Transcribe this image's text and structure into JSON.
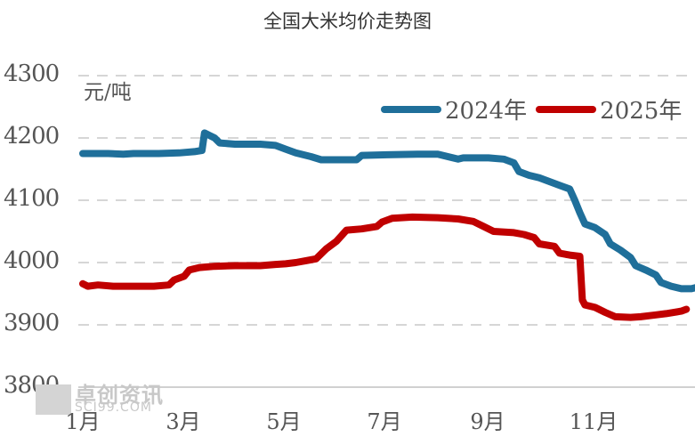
{
  "chart_data": {
    "type": "line",
    "title": "全国大米均价走势图",
    "ylabel": "元/吨",
    "xlabel": "",
    "ylim": [
      3800,
      4300
    ],
    "yticks": [
      4300,
      4200,
      4100,
      4000,
      3900,
      3800
    ],
    "xticks": [
      "1月",
      "3月",
      "5月",
      "7月",
      "9月",
      "11月"
    ],
    "xlim_months": [
      1,
      13
    ],
    "grid": "horizontal dashed",
    "legend_position": "top-right",
    "series": [
      {
        "name": "2024年",
        "color": "#1f6f9a",
        "points": [
          [
            1.0,
            4175
          ],
          [
            1.5,
            4175
          ],
          [
            1.8,
            4174
          ],
          [
            2.0,
            4175
          ],
          [
            2.5,
            4175
          ],
          [
            2.9,
            4176
          ],
          [
            3.2,
            4178
          ],
          [
            3.35,
            4180
          ],
          [
            3.4,
            4208
          ],
          [
            3.5,
            4204
          ],
          [
            3.6,
            4200
          ],
          [
            3.7,
            4192
          ],
          [
            4.0,
            4190
          ],
          [
            4.5,
            4190
          ],
          [
            4.8,
            4188
          ],
          [
            5.0,
            4182
          ],
          [
            5.2,
            4176
          ],
          [
            5.5,
            4170
          ],
          [
            5.7,
            4165
          ],
          [
            6.0,
            4165
          ],
          [
            6.4,
            4165
          ],
          [
            6.5,
            4172
          ],
          [
            7.0,
            4173
          ],
          [
            7.6,
            4174
          ],
          [
            8.0,
            4174
          ],
          [
            8.4,
            4166
          ],
          [
            8.5,
            4168
          ],
          [
            9.0,
            4168
          ],
          [
            9.3,
            4166
          ],
          [
            9.5,
            4160
          ],
          [
            9.6,
            4146
          ],
          [
            9.8,
            4140
          ],
          [
            10.0,
            4136
          ],
          [
            10.2,
            4130
          ],
          [
            10.4,
            4124
          ],
          [
            10.6,
            4118
          ],
          [
            10.7,
            4100
          ],
          [
            10.8,
            4080
          ],
          [
            10.9,
            4062
          ],
          [
            11.1,
            4056
          ],
          [
            11.3,
            4045
          ],
          [
            11.4,
            4030
          ],
          [
            11.6,
            4020
          ],
          [
            11.8,
            4008
          ],
          [
            11.9,
            3995
          ],
          [
            12.1,
            3988
          ],
          [
            12.3,
            3980
          ],
          [
            12.4,
            3968
          ],
          [
            12.6,
            3962
          ],
          [
            12.8,
            3958
          ],
          [
            13.0,
            3958
          ],
          [
            13.2,
            3962
          ],
          [
            13.4,
            3964
          ],
          [
            13.6,
            3968
          ]
        ]
      },
      {
        "name": "2025年",
        "color": "#c00000",
        "points": [
          [
            1.0,
            3966
          ],
          [
            1.1,
            3962
          ],
          [
            1.3,
            3964
          ],
          [
            1.6,
            3962
          ],
          [
            2.0,
            3962
          ],
          [
            2.4,
            3962
          ],
          [
            2.7,
            3964
          ],
          [
            2.8,
            3972
          ],
          [
            3.0,
            3978
          ],
          [
            3.1,
            3988
          ],
          [
            3.3,
            3992
          ],
          [
            3.6,
            3994
          ],
          [
            4.0,
            3995
          ],
          [
            4.5,
            3995
          ],
          [
            4.8,
            3997
          ],
          [
            5.0,
            3998
          ],
          [
            5.2,
            4000
          ],
          [
            5.4,
            4003
          ],
          [
            5.6,
            4006
          ],
          [
            5.8,
            4022
          ],
          [
            6.0,
            4034
          ],
          [
            6.2,
            4052
          ],
          [
            6.5,
            4054
          ],
          [
            6.8,
            4058
          ],
          [
            6.9,
            4065
          ],
          [
            7.1,
            4071
          ],
          [
            7.5,
            4073
          ],
          [
            8.0,
            4072
          ],
          [
            8.4,
            4070
          ],
          [
            8.7,
            4066
          ],
          [
            8.9,
            4058
          ],
          [
            9.1,
            4050
          ],
          [
            9.5,
            4048
          ],
          [
            9.7,
            4045
          ],
          [
            9.9,
            4040
          ],
          [
            10.0,
            4030
          ],
          [
            10.3,
            4026
          ],
          [
            10.4,
            4015
          ],
          [
            10.6,
            4012
          ],
          [
            10.8,
            4010
          ],
          [
            10.85,
            3940
          ],
          [
            10.9,
            3932
          ],
          [
            11.1,
            3928
          ],
          [
            11.3,
            3920
          ],
          [
            11.5,
            3913
          ],
          [
            11.8,
            3912
          ],
          [
            12.0,
            3913
          ],
          [
            12.3,
            3916
          ],
          [
            12.5,
            3918
          ],
          [
            12.8,
            3922
          ],
          [
            12.9,
            3925
          ]
        ]
      }
    ]
  },
  "title": "全国大米均价走势图",
  "unit": "元/吨",
  "yticks": [
    "4300",
    "4200",
    "4100",
    "4000",
    "3900",
    "3800"
  ],
  "xticks": [
    "1月",
    "3月",
    "5月",
    "7月",
    "9月",
    "11月"
  ],
  "legend": [
    {
      "label": "2024年",
      "color": "#1f6f9a"
    },
    {
      "label": "2025年",
      "color": "#c00000"
    }
  ],
  "watermark": {
    "cn": "卓创资讯",
    "en": "SCI99.COM"
  }
}
